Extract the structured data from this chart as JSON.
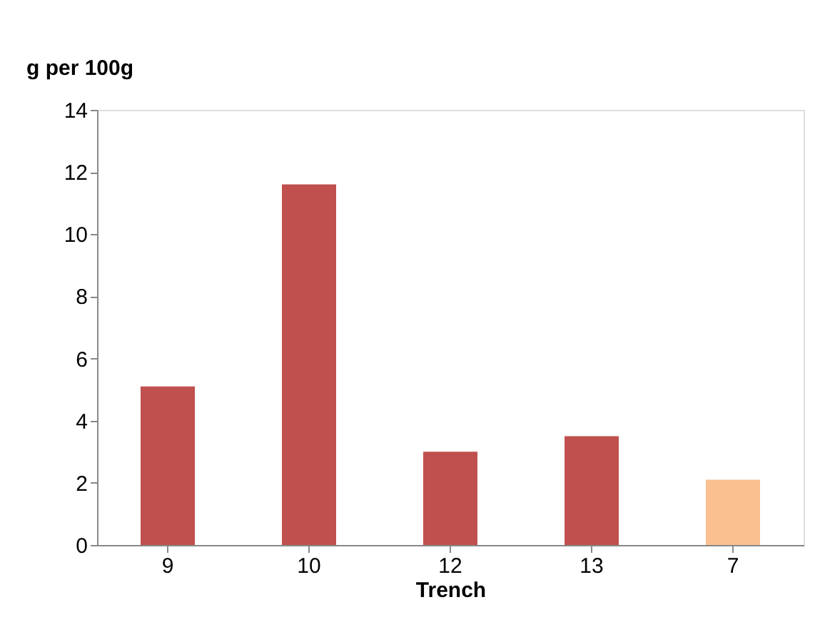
{
  "chart_data": {
    "type": "bar",
    "ylabel": "g per 100g",
    "xlabel": "Trench",
    "categories": [
      "9",
      "10",
      "12",
      "13",
      "7"
    ],
    "values": [
      5.1,
      11.6,
      3.0,
      3.5,
      2.1
    ],
    "colors": [
      "#c0504d",
      "#c0504d",
      "#c0504d",
      "#c0504d",
      "#fac090"
    ],
    "ylim": [
      0,
      14
    ],
    "yticks": [
      0,
      2,
      4,
      6,
      8,
      10,
      12,
      14
    ],
    "grid": false
  }
}
